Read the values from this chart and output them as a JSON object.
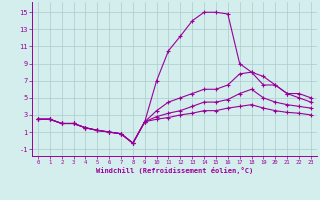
{
  "xlabel": "Windchill (Refroidissement éolien,°C)",
  "bg_color": "#d4eded",
  "grid_color": "#aacccc",
  "line_color": "#990099",
  "xlim": [
    -0.5,
    23.5
  ],
  "ylim": [
    -1.8,
    16.2
  ],
  "yticks": [
    -1,
    1,
    3,
    5,
    7,
    9,
    11,
    13,
    15
  ],
  "xticks": [
    0,
    1,
    2,
    3,
    4,
    5,
    6,
    7,
    8,
    9,
    10,
    11,
    12,
    13,
    14,
    15,
    16,
    17,
    18,
    19,
    20,
    21,
    22,
    23
  ],
  "line1_x": [
    0,
    1,
    2,
    3,
    4,
    5,
    6,
    7,
    8,
    9,
    10,
    11,
    12,
    13,
    14,
    15,
    16,
    17,
    18,
    19,
    20,
    21,
    22,
    23
  ],
  "line1_y": [
    2.5,
    2.5,
    2.0,
    2.0,
    1.5,
    1.2,
    1.0,
    0.8,
    -0.3,
    2.2,
    7.0,
    10.5,
    12.2,
    14.0,
    15.0,
    15.0,
    14.8,
    9.0,
    8.0,
    7.5,
    6.5,
    5.5,
    5.0,
    4.5
  ],
  "line2_x": [
    0,
    1,
    2,
    3,
    4,
    5,
    6,
    7,
    8,
    9,
    10,
    11,
    12,
    13,
    14,
    15,
    16,
    17,
    18,
    19,
    20,
    21,
    22,
    23
  ],
  "line2_y": [
    2.5,
    2.5,
    2.0,
    2.0,
    1.5,
    1.2,
    1.0,
    0.8,
    -0.3,
    2.2,
    3.5,
    4.5,
    5.0,
    5.5,
    6.0,
    6.0,
    6.5,
    7.8,
    8.0,
    6.5,
    6.5,
    5.5,
    5.5,
    5.0
  ],
  "line3_x": [
    0,
    1,
    2,
    3,
    4,
    5,
    6,
    7,
    8,
    9,
    10,
    11,
    12,
    13,
    14,
    15,
    16,
    17,
    18,
    19,
    20,
    21,
    22,
    23
  ],
  "line3_y": [
    2.5,
    2.5,
    2.0,
    2.0,
    1.5,
    1.2,
    1.0,
    0.8,
    -0.3,
    2.2,
    2.8,
    3.2,
    3.5,
    4.0,
    4.5,
    4.5,
    4.8,
    5.5,
    6.0,
    5.0,
    4.5,
    4.2,
    4.0,
    3.8
  ],
  "line4_x": [
    0,
    1,
    2,
    3,
    4,
    5,
    6,
    7,
    8,
    9,
    10,
    11,
    12,
    13,
    14,
    15,
    16,
    17,
    18,
    19,
    20,
    21,
    22,
    23
  ],
  "line4_y": [
    2.5,
    2.5,
    2.0,
    2.0,
    1.5,
    1.2,
    1.0,
    0.8,
    -0.3,
    2.2,
    2.5,
    2.7,
    3.0,
    3.2,
    3.5,
    3.5,
    3.8,
    4.0,
    4.2,
    3.8,
    3.5,
    3.3,
    3.2,
    3.0
  ]
}
